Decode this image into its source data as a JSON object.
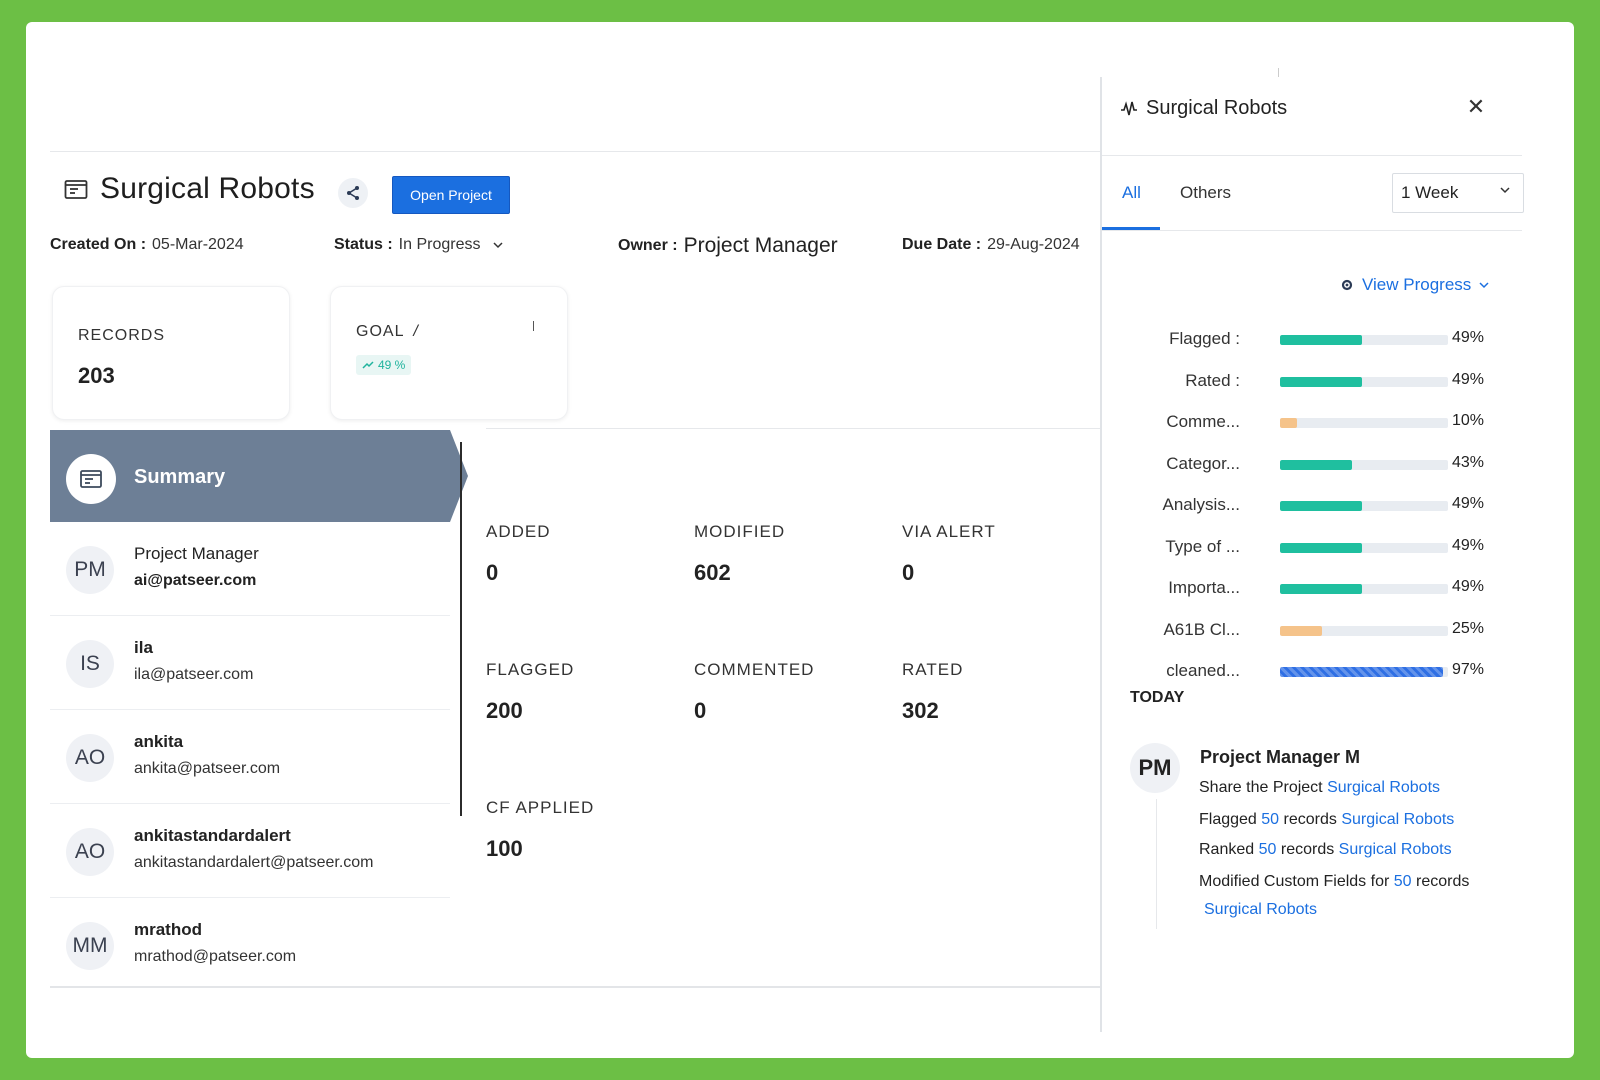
{
  "project": {
    "title": "Surgical Robots",
    "open_button": "Open Project",
    "created_label": "Created On :",
    "created_value": "05-Mar-2024",
    "status_label": "Status :",
    "status_value": "In Progress",
    "owner_label": "Owner :",
    "owner_value": "Project Manager",
    "due_label": "Due Date :",
    "due_value": "29-Aug-2024"
  },
  "cards": {
    "records_label": "RECORDS",
    "records_value": "203",
    "goal_label": "GOAL",
    "goal_badge": "49 %"
  },
  "summary": {
    "tab_label": "Summary",
    "users": [
      {
        "initials": "PM",
        "name": "Project Manager",
        "email": "ai@patseer.com"
      },
      {
        "initials": "IS",
        "name": "ila",
        "email": "ila@patseer.com"
      },
      {
        "initials": "AO",
        "name": "ankita",
        "email": "ankita@patseer.com"
      },
      {
        "initials": "AO",
        "name": "ankitastandardalert",
        "email": "ankitastandardalert@patseer.com"
      },
      {
        "initials": "MM",
        "name": "mrathod",
        "email": "mrathod@patseer.com"
      }
    ],
    "stats": [
      {
        "label": "ADDED",
        "value": "0"
      },
      {
        "label": "MODIFIED",
        "value": "602"
      },
      {
        "label": "VIA ALERT",
        "value": "0"
      },
      {
        "label": "FLAGGED",
        "value": "200"
      },
      {
        "label": "COMMENTED",
        "value": "0"
      },
      {
        "label": "RATED",
        "value": "302"
      },
      {
        "label": "CF APPLIED",
        "value": "100"
      }
    ]
  },
  "panel": {
    "title": "Surgical Robots",
    "tabs": [
      "All",
      "Others"
    ],
    "active_tab": "All",
    "period": "1 Week",
    "view_progress": "View Progress",
    "progress": [
      {
        "label": "Flagged :",
        "percent": 49,
        "pct_text": "49%",
        "color": "#1fbf9f",
        "striped": false
      },
      {
        "label": "Rated :",
        "percent": 49,
        "pct_text": "49%",
        "color": "#1fbf9f",
        "striped": false
      },
      {
        "label": "Comme...",
        "percent": 10,
        "pct_text": "10%",
        "color": "#f5c38a",
        "striped": false
      },
      {
        "label": "Categor...",
        "percent": 43,
        "pct_text": "43%",
        "color": "#1fbf9f",
        "striped": false
      },
      {
        "label": "Analysis...",
        "percent": 49,
        "pct_text": "49%",
        "color": "#1fbf9f",
        "striped": false
      },
      {
        "label": "Type of ...",
        "percent": 49,
        "pct_text": "49%",
        "color": "#1fbf9f",
        "striped": false
      },
      {
        "label": "Importa...",
        "percent": 49,
        "pct_text": "49%",
        "color": "#1fbf9f",
        "striped": false
      },
      {
        "label": "A61B Cl...",
        "percent": 25,
        "pct_text": "25%",
        "color": "#f5c38a",
        "striped": false
      },
      {
        "label": "cleaned...",
        "percent": 97,
        "pct_text": "97%",
        "color": "#2f6fe4",
        "striped": true
      }
    ],
    "today_label": "TODAY",
    "activity": {
      "initials": "PM",
      "name": "Project Manager M",
      "line1_text": "Share the Project",
      "line1_link": "Surgical Robots",
      "line2_pre": "Flagged",
      "line2_num": "50",
      "line2_mid": "records",
      "line2_link": "Surgical Robots",
      "line3_pre": "Ranked",
      "line3_num": "50",
      "line3_mid": "records",
      "line3_link": "Surgical Robots",
      "line4_pre": "Modified Custom Fields for",
      "line4_num": "50",
      "line4_mid": "records",
      "line5_link": "Surgical Robots"
    }
  },
  "colors": {
    "accent": "#1b6fe0",
    "summary_tab": "#6d7f96",
    "outer_border": "#6cbf45"
  }
}
